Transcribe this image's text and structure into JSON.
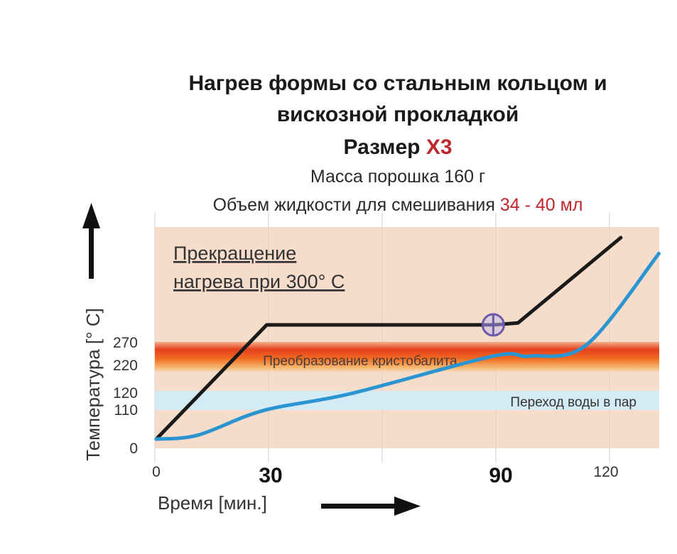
{
  "title": {
    "line1": "Нагрев формы со стальным кольцом и",
    "line2": "вискозной прокладкой",
    "size_label": "Размер ",
    "size_value": "X3"
  },
  "subtitle": {
    "powder": "Масса порошка 160 г",
    "liquid_label": "Объем жидкости для смешивания ",
    "liquid_value": "34 - 40 мл"
  },
  "colors": {
    "accent": "#c0272d",
    "plot_bg": "#f6dccb",
    "black_curve": "#1a1a1a",
    "blue_curve": "#2a95d1",
    "band_water": "#d4ebf5",
    "band_cristobalite": "#e53a1f",
    "marker": "#6a5aa8"
  },
  "chart_data": {
    "type": "line",
    "xlabel": "Время [мин.]",
    "ylabel": "Температура [° C]",
    "x_ticks": [
      "0",
      "30",
      "90",
      "120"
    ],
    "y_ticks": [
      "0",
      "110",
      "120",
      "220",
      "270"
    ],
    "xlim": [
      0,
      132
    ],
    "annotation": {
      "line1": "Прекращение ",
      "line2": "нагрева при 300° C"
    },
    "bands": [
      {
        "label": "Преобразование кристобалита",
        "y": [
          220,
          270
        ]
      },
      {
        "label": "Переход воды в пар",
        "y": [
          110,
          120
        ]
      }
    ],
    "marker": {
      "x": 88.5,
      "y": 300
    },
    "series": [
      {
        "x": [
          0,
          29,
          88.5,
          95,
          122
        ],
        "y": [
          0,
          300,
          300,
          305,
          520
        ]
      },
      {
        "x": [
          0,
          11,
          28,
          51,
          88.5,
          98,
          113,
          132
        ],
        "y": [
          0,
          15,
          105,
          120,
          245,
          245,
          265,
          480
        ]
      }
    ]
  }
}
